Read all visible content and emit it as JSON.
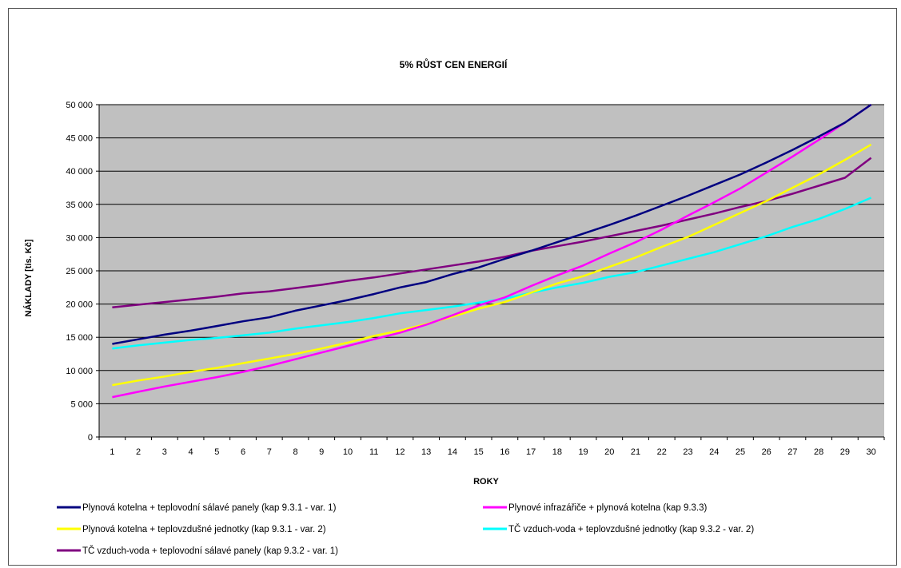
{
  "chart_data": {
    "type": "line",
    "title": "5% RŮST CEN ENERGIÍ",
    "xlabel": "ROKY",
    "ylabel": "NÁKLADY [tis. Kč]",
    "x": [
      1,
      2,
      3,
      4,
      5,
      6,
      7,
      8,
      9,
      10,
      11,
      12,
      13,
      14,
      15,
      16,
      17,
      18,
      19,
      20,
      21,
      22,
      23,
      24,
      25,
      26,
      27,
      28,
      29,
      30
    ],
    "ylim": [
      0,
      50000
    ],
    "yticks": [
      0,
      5000,
      10000,
      15000,
      20000,
      25000,
      30000,
      35000,
      40000,
      45000,
      50000
    ],
    "ytick_labels": [
      "0",
      "5 000",
      "10 000",
      "15 000",
      "20 000",
      "25 000",
      "30 000",
      "35 000",
      "40 000",
      "45 000",
      "50 000"
    ],
    "grid": "horizontal",
    "legend_position": "bottom",
    "series": [
      {
        "name": "Plynová kotelna + teplovodní sálavé panely (kap 9.3.1 - var. 1)",
        "color": "#000080",
        "values": [
          14000,
          14700,
          15400,
          16000,
          16700,
          17400,
          18000,
          19000,
          19800,
          20600,
          21500,
          22500,
          23300,
          24500,
          25500,
          26800,
          28000,
          29300,
          30600,
          31900,
          33300,
          34800,
          36300,
          37900,
          39500,
          41300,
          43200,
          45200,
          47300,
          50000
        ]
      },
      {
        "name": "Plynové infrazářiče + plynová kotelna (kap 9.3.3)",
        "color": "#ff00ff",
        "values": [
          6000,
          6800,
          7600,
          8300,
          9000,
          9800,
          10700,
          11700,
          12700,
          13700,
          14700,
          15700,
          16900,
          18300,
          19800,
          21000,
          22700,
          24300,
          25800,
          27600,
          29300,
          31200,
          33300,
          35300,
          37400,
          39800,
          42200,
          44700,
          47300,
          50000
        ]
      },
      {
        "name": "Plynová kotelna + teplovzdušné jednotky (kap 9.3.1 - var. 2)",
        "color": "#ffff00",
        "values": [
          7800,
          8500,
          9100,
          9800,
          10400,
          11100,
          11800,
          12500,
          13300,
          14200,
          15200,
          16000,
          17000,
          18100,
          19300,
          20300,
          21700,
          23100,
          24200,
          25600,
          27000,
          28600,
          30100,
          31900,
          33700,
          35500,
          37500,
          39500,
          41700,
          44000
        ]
      },
      {
        "name": "TČ vzduch-voda + teplovzdušné jednotky (kap 9.3.2 - var. 2)",
        "color": "#00ffff",
        "values": [
          13300,
          13800,
          14200,
          14600,
          14900,
          15300,
          15700,
          16300,
          16800,
          17300,
          17900,
          18600,
          19100,
          19600,
          20200,
          20800,
          21700,
          22500,
          23200,
          24100,
          24800,
          25800,
          26800,
          27800,
          29000,
          30200,
          31600,
          32800,
          34300,
          36000
        ]
      },
      {
        "name": "TČ vzduch-voda + teplovodní sálavé panely (kap 9.3.2 - var. 1)",
        "color": "#800080",
        "values": [
          19500,
          19900,
          20300,
          20700,
          21100,
          21600,
          21900,
          22400,
          22900,
          23500,
          24000,
          24600,
          25200,
          25800,
          26400,
          27100,
          28000,
          28700,
          29400,
          30200,
          31000,
          31800,
          32700,
          33600,
          34600,
          35500,
          36600,
          37800,
          39000,
          42000
        ]
      }
    ]
  },
  "colors": {
    "plot_background": "#c0c0c0",
    "gridline": "#000000",
    "frame_border": "#555555"
  }
}
